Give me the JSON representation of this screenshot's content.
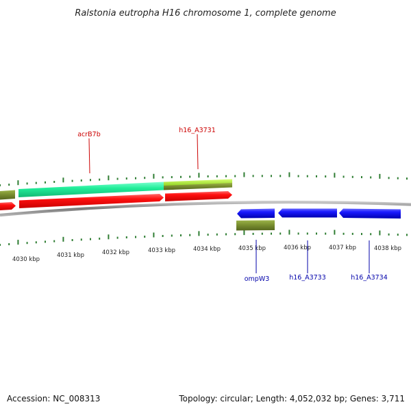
{
  "title": "Ralstonia eutropha H16 chromosome 1, complete genome",
  "footer": {
    "accession": "Accession: NC_008313",
    "summary": "Topology: circular; Length: 4,052,032 bp; Genes: 3,711"
  },
  "colors": {
    "backbone": "#8a8a8a",
    "tick": "#2e7d32",
    "forward_cds": "#ff0a0a",
    "reverse_cds": "#1414f0",
    "cyan_feature": "#22ee9a",
    "olive_feature": "#7a8f30",
    "lime_feature": "#a8e632",
    "forward_label": "#cc0000",
    "reverse_label": "#0000aa"
  },
  "scale": {
    "ticks": [
      {
        "label": "4030 kbp"
      },
      {
        "label": "4031 kbp"
      },
      {
        "label": "4032 kbp"
      },
      {
        "label": "4033 kbp"
      },
      {
        "label": "4034 kbp"
      },
      {
        "label": "4035 kbp"
      },
      {
        "label": "4036 kbp"
      },
      {
        "label": "4037 kbp"
      },
      {
        "label": "4038 kbp"
      }
    ]
  },
  "gene_labels": {
    "acrB7b": "acrB7b",
    "h16_A3731": "h16_A3731",
    "ompW3": "ompW3",
    "h16_A3733": "h16_A3733",
    "h16_A3734": "h16_A3734"
  }
}
